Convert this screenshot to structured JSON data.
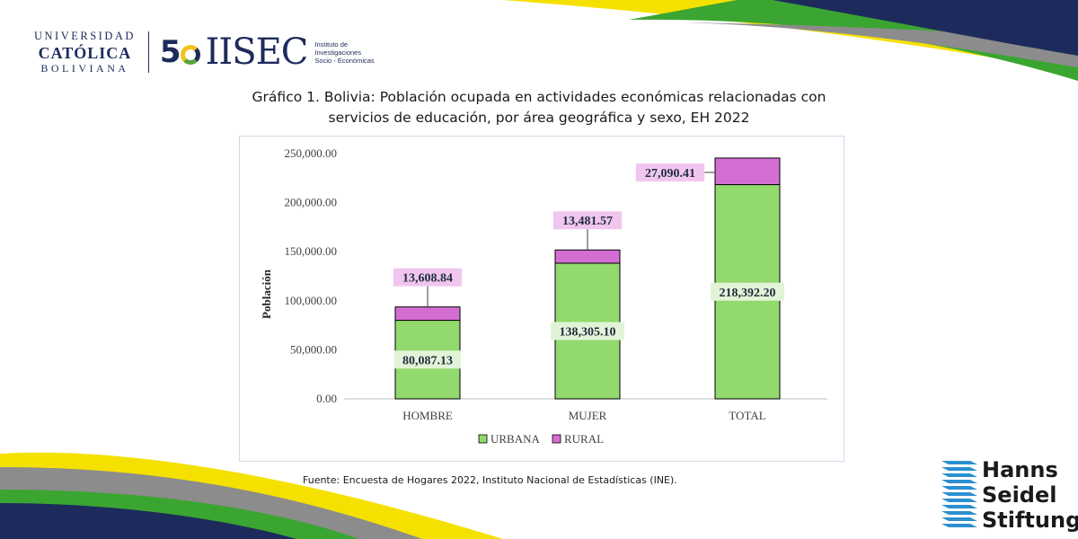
{
  "logos": {
    "ucb": {
      "line1": "UNIVERSIDAD",
      "line2": "CATÓLICA",
      "line3": "BOLIVIANA"
    },
    "iisec": {
      "fifty": "5",
      "name": "IISEC",
      "subtitle": [
        "Instituto de",
        "Investigaciones",
        "Socio - Económicas"
      ]
    },
    "hss": {
      "lines": [
        "Hanns",
        "Seidel",
        "Stiftung"
      ]
    }
  },
  "title": {
    "line1": "Gráfico 1. Bolivia: Población ocupada en actividades económicas relacionadas con",
    "line2": "servicios de educación, por área geográfica y sexo, EH 2022"
  },
  "source": "Fuente: Encuesta de Hogares 2022, Instituto Nacional de Estadísticas (INE).",
  "colors": {
    "urbana": "#92d96e",
    "rural": "#d56ed2",
    "rural_label_bg": "#f0c6ee",
    "urbana_label_bg": "#e2f4d8",
    "navy": "#1d2b5c",
    "yellow": "#f5e100",
    "green": "#3aa531",
    "gray": "#8c8c8c",
    "hss_blue": "#2b8fd0"
  },
  "chart_data": {
    "type": "bar",
    "stacked": true,
    "categories": [
      "HOMBRE",
      "MUJER",
      "TOTAL"
    ],
    "series": [
      {
        "name": "URBANA",
        "values": [
          80087.13,
          138305.1,
          218392.2
        ],
        "labels": [
          "80,087.13",
          "138,305.10",
          "218,392.20"
        ]
      },
      {
        "name": "RURAL",
        "values": [
          13608.84,
          13481.57,
          27090.41
        ],
        "labels": [
          "13,608.84",
          "13,481.57",
          "27,090.41"
        ]
      }
    ],
    "yticks": [
      "0.00",
      "50,000.00",
      "100,000.00",
      "150,000.00",
      "200,000.00",
      "250,000.00"
    ],
    "ylabel": "Población",
    "ylim": [
      0,
      250000
    ],
    "grid": false,
    "legend": "bottom"
  }
}
